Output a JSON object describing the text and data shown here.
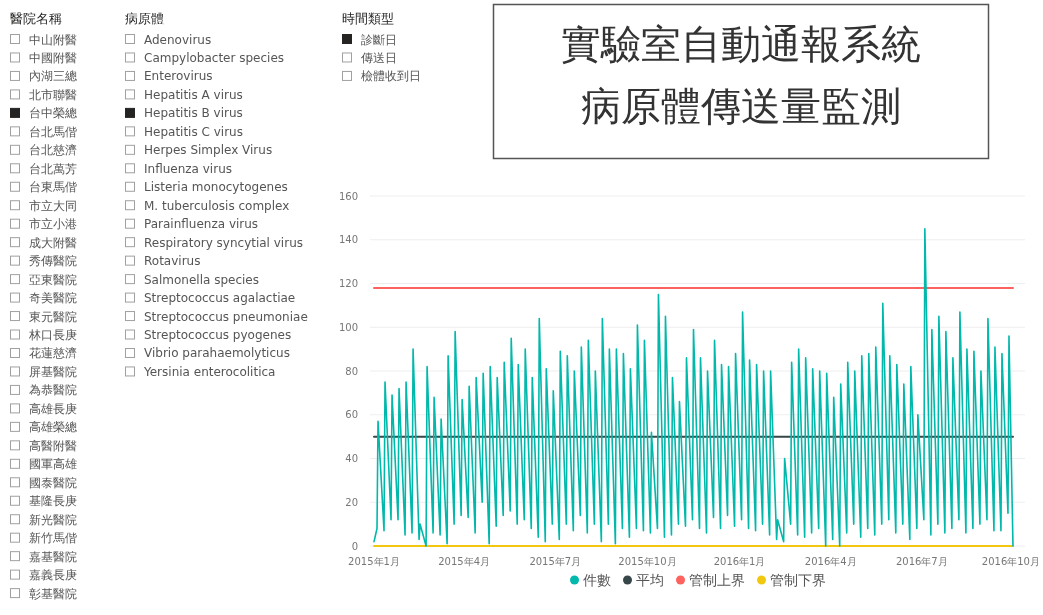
{
  "chart_data": [
    {
      "type": "other",
      "title": "醫院名稱",
      "categories": [
        "中山附醫",
        "中國附醫",
        "內湖三總",
        "北市聯醫",
        "台中榮總",
        "台北馬偕",
        "台北慈濟",
        "台北萬芳",
        "台東馬偕",
        "市立大同",
        "市立小港",
        "成大附醫",
        "秀傳醫院",
        "亞東醫院",
        "奇美醫院",
        "東元醫院",
        "林口長庚",
        "花蓮慈濟",
        "屏基醫院",
        "為恭醫院",
        "高雄長庚",
        "高雄榮總",
        "高醫附醫",
        "國軍高雄",
        "國泰醫院",
        "基隆長庚",
        "新光醫院",
        "新竹馬偕",
        "嘉基醫院",
        "嘉義長庚",
        "彰基醫院"
      ],
      "colors": [
        "#ffffff",
        "#ffffff",
        "#ffffff",
        "#ffffff",
        "#252423",
        "#ffffff",
        "#ffffff",
        "#ffffff",
        "#ffffff",
        "#ffffff",
        "#ffffff",
        "#ffffff",
        "#ffffff",
        "#ffffff",
        "#ffffff",
        "#ffffff",
        "#ffffff",
        "#ffffff",
        "#ffffff",
        "#ffffff",
        "#ffffff",
        "#ffffff",
        "#ffffff",
        "#ffffff",
        "#ffffff",
        "#ffffff",
        "#ffffff",
        "#ffffff",
        "#ffffff",
        "#ffffff",
        "#ffffff"
      ]
    },
    {
      "type": "other",
      "title": "病原體",
      "categories": [
        "Adenovirus",
        "Campylobacter species",
        "Enterovirus",
        "Hepatitis A virus",
        "Hepatitis B virus",
        "Hepatitis C virus",
        "Herpes Simplex Virus",
        "Influenza virus",
        "Listeria monocytogenes",
        "M. tuberculosis complex",
        "Parainfluenza virus",
        "Respiratory syncytial virus",
        "Rotavirus",
        "Salmonella species",
        "Streptococcus agalactiae",
        "Streptococcus pneumoniae",
        "Streptococcus pyogenes",
        "Vibrio parahaemolyticus",
        "Yersinia enterocolitica"
      ],
      "colors": [
        "#ffffff",
        "#ffffff",
        "#ffffff",
        "#ffffff",
        "#252423",
        "#ffffff",
        "#ffffff",
        "#ffffff",
        "#ffffff",
        "#ffffff",
        "#ffffff",
        "#ffffff",
        "#ffffff",
        "#ffffff",
        "#ffffff",
        "#ffffff",
        "#ffffff",
        "#ffffff",
        "#ffffff"
      ]
    },
    {
      "type": "other",
      "title": "時間類型",
      "categories": [
        "診斷日",
        "傳送日",
        "檢體收到日"
      ],
      "colors": [
        "#252423",
        "#ffffff",
        "#ffffff"
      ]
    },
    {
      "type": "line",
      "title": "實驗室自動通報系統病原體傳送量監測",
      "xlim": [
        "2014-12-28",
        "2016-10-12"
      ],
      "ylim": [
        0,
        160
      ],
      "yticks": [
        0,
        20,
        40,
        60,
        80,
        100,
        120,
        140,
        160
      ],
      "xticks": [
        {
          "value": "2015-01-01",
          "label": "2015年1月"
        },
        {
          "value": "2015-04-01",
          "label": "2015年4月"
        },
        {
          "value": "2015-07-01",
          "label": "2015年7月"
        },
        {
          "value": "2015-10-01",
          "label": "2015年10月"
        },
        {
          "value": "2016-01-01",
          "label": "2016年1月"
        },
        {
          "value": "2016-04-01",
          "label": "2016年4月"
        },
        {
          "value": "2016-07-01",
          "label": "2016年7月"
        },
        {
          "value": "2016-10-01",
          "label": "2016年10月"
        }
      ],
      "grid": "y",
      "legend": "bottom",
      "line_style": "solid",
      "series": [
        {
          "name": "件數",
          "color": "#01b8aa",
          "x": [
            "2015-01-01",
            "2015-01-04",
            "2015-01-05",
            "2015-01-11",
            "2015-01-12",
            "2015-01-18",
            "2015-01-19",
            "2015-01-25",
            "2015-01-26",
            "2015-02-01",
            "2015-02-02",
            "2015-02-08",
            "2015-02-09",
            "2015-02-15",
            "2015-02-16",
            "2015-02-22",
            "2015-02-23",
            "2015-03-01",
            "2015-03-02",
            "2015-03-08",
            "2015-03-09",
            "2015-03-15",
            "2015-03-16",
            "2015-03-22",
            "2015-03-23",
            "2015-03-29",
            "2015-03-30",
            "2015-04-05",
            "2015-04-06",
            "2015-04-12",
            "2015-04-13",
            "2015-04-19",
            "2015-04-20",
            "2015-04-26",
            "2015-04-27",
            "2015-05-03",
            "2015-05-04",
            "2015-05-10",
            "2015-05-11",
            "2015-05-17",
            "2015-05-18",
            "2015-05-24",
            "2015-05-25",
            "2015-05-31",
            "2015-06-01",
            "2015-06-07",
            "2015-06-08",
            "2015-06-14",
            "2015-06-15",
            "2015-06-21",
            "2015-06-22",
            "2015-06-28",
            "2015-06-29",
            "2015-07-05",
            "2015-07-06",
            "2015-07-12",
            "2015-07-13",
            "2015-07-19",
            "2015-07-20",
            "2015-07-26",
            "2015-07-27",
            "2015-08-02",
            "2015-08-03",
            "2015-08-09",
            "2015-08-10",
            "2015-08-16",
            "2015-08-17",
            "2015-08-23",
            "2015-08-24",
            "2015-08-30",
            "2015-08-31",
            "2015-09-06",
            "2015-09-07",
            "2015-09-13",
            "2015-09-14",
            "2015-09-20",
            "2015-09-21",
            "2015-09-27",
            "2015-09-28",
            "2015-10-04",
            "2015-10-05",
            "2015-10-11",
            "2015-10-12",
            "2015-10-18",
            "2015-10-19",
            "2015-10-25",
            "2015-10-26",
            "2015-11-01",
            "2015-11-02",
            "2015-11-08",
            "2015-11-09",
            "2015-11-15",
            "2015-11-16",
            "2015-11-22",
            "2015-11-23",
            "2015-11-29",
            "2015-11-30",
            "2015-12-06",
            "2015-12-07",
            "2015-12-13",
            "2015-12-14",
            "2015-12-20",
            "2015-12-21",
            "2015-12-27",
            "2015-12-28",
            "2016-01-03",
            "2016-01-04",
            "2016-01-10",
            "2016-01-11",
            "2016-01-17",
            "2016-01-18",
            "2016-01-24",
            "2016-01-25",
            "2016-01-31",
            "2016-02-01",
            "2016-02-07",
            "2016-02-08",
            "2016-02-14",
            "2016-02-15",
            "2016-02-21",
            "2016-02-22",
            "2016-02-28",
            "2016-02-29",
            "2016-03-06",
            "2016-03-07",
            "2016-03-13",
            "2016-03-14",
            "2016-03-20",
            "2016-03-21",
            "2016-03-27",
            "2016-03-28",
            "2016-04-03",
            "2016-04-04",
            "2016-04-10",
            "2016-04-11",
            "2016-04-17",
            "2016-04-18",
            "2016-04-24",
            "2016-04-25",
            "2016-05-01",
            "2016-05-02",
            "2016-05-08",
            "2016-05-09",
            "2016-05-15",
            "2016-05-16",
            "2016-05-22",
            "2016-05-23",
            "2016-05-29",
            "2016-05-30",
            "2016-06-05",
            "2016-06-06",
            "2016-06-12",
            "2016-06-13",
            "2016-06-19",
            "2016-06-20",
            "2016-06-26",
            "2016-06-27",
            "2016-07-03",
            "2016-07-04",
            "2016-07-10",
            "2016-07-11",
            "2016-07-17",
            "2016-07-18",
            "2016-07-24",
            "2016-07-25",
            "2016-07-31",
            "2016-08-01",
            "2016-08-07",
            "2016-08-08",
            "2016-08-14",
            "2016-08-15",
            "2016-08-21",
            "2016-08-22",
            "2016-08-28",
            "2016-08-29",
            "2016-09-04",
            "2016-09-05",
            "2016-09-11",
            "2016-09-12",
            "2016-09-18",
            "2016-09-19",
            "2016-09-25",
            "2016-09-26",
            "2016-09-30"
          ],
          "values": [
            2,
            8,
            57,
            7,
            75,
            12,
            69,
            12,
            72,
            5,
            75,
            6,
            90,
            3,
            10,
            0,
            82,
            6,
            68,
            5,
            58,
            1,
            87,
            10,
            98,
            14,
            67,
            13,
            73,
            6,
            77,
            20,
            79,
            1,
            82,
            9,
            77,
            14,
            84,
            16,
            95,
            10,
            83,
            12,
            90,
            8,
            77,
            4,
            104,
            2,
            81,
            10,
            71,
            3,
            89,
            10,
            87,
            7,
            80,
            14,
            91,
            6,
            94,
            10,
            80,
            2,
            104,
            10,
            90,
            1,
            90,
            8,
            88,
            4,
            81,
            8,
            101,
            7,
            94,
            6,
            52,
            8,
            115,
            4,
            105,
            5,
            77,
            10,
            66,
            9,
            86,
            12,
            99,
            8,
            86,
            6,
            80,
            13,
            94,
            8,
            83,
            14,
            82,
            9,
            88,
            12,
            107,
            8,
            85,
            7,
            83,
            10,
            80,
            5,
            80,
            3,
            12,
            2,
            40,
            10,
            84,
            5,
            90,
            4,
            86,
            6,
            81,
            8,
            80,
            0,
            79,
            3,
            68,
            0,
            74,
            6,
            84,
            10,
            80,
            4,
            87,
            8,
            88,
            5,
            91,
            10,
            111,
            12,
            87,
            6,
            83,
            10,
            74,
            3,
            82,
            8,
            60,
            12,
            145,
            5,
            99,
            10,
            105,
            6,
            98,
            8,
            86,
            12,
            107,
            6,
            90,
            8,
            89,
            10,
            80,
            12,
            104,
            7,
            91,
            7,
            88,
            15,
            96,
            0
          ]
        },
        {
          "name": "平均",
          "color": "#374649",
          "x": [
            "2015-01-01",
            "2016-09-30"
          ],
          "values": [
            50,
            50
          ]
        },
        {
          "name": "管制上界",
          "color": "#fd625e",
          "x": [
            "2015-01-01",
            "2016-09-30"
          ],
          "values": [
            118,
            118
          ]
        },
        {
          "name": "管制下界",
          "color": "#f2c80f",
          "x": [
            "2015-01-01",
            "2016-09-30"
          ],
          "values": [
            0,
            0
          ]
        }
      ]
    }
  ]
}
